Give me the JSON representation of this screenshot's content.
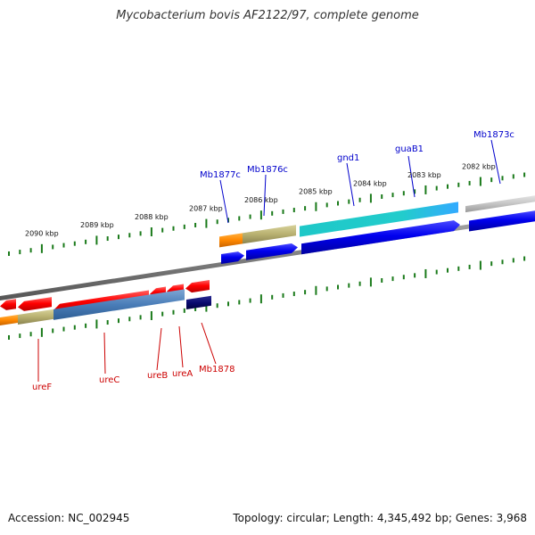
{
  "title": "Mycobacterium bovis AF2122/97, complete genome",
  "accession": "Accession: NC_002945",
  "summary": "Topology: circular; Length: 4,345,492 bp; Genes: 3,968",
  "colors": {
    "background": "#ffffff",
    "tick": "#1a7a1a",
    "backbone": "#7f7f7f",
    "label_upper": "#0000cc",
    "label_lower": "#cc0000"
  },
  "scale": {
    "unit": "kbp",
    "labels": [
      "2090 kbp",
      "2089 kbp",
      "2088 kbp",
      "2087 kbp",
      "2086 kbp",
      "2085 kbp",
      "2084 kbp",
      "2083 kbp",
      "2082 kbp"
    ]
  },
  "genes": {
    "upper": [
      {
        "label": "Mb1877c",
        "color": "#0000cc"
      },
      {
        "label": "Mb1876c",
        "color": "#0000cc"
      },
      {
        "label": "gnd1",
        "color": "#0000cc"
      },
      {
        "label": "guaB1",
        "color": "#0000cc"
      },
      {
        "label": "Mb1873c",
        "color": "#0000cc"
      }
    ],
    "lower": [
      {
        "label": "ureF",
        "color": "#cc0000"
      },
      {
        "label": "ureC",
        "color": "#cc0000"
      },
      {
        "label": "ureB",
        "color": "#cc0000"
      },
      {
        "label": "ureA",
        "color": "#cc0000"
      },
      {
        "label": "Mb1878",
        "color": "#cc0000"
      }
    ]
  }
}
